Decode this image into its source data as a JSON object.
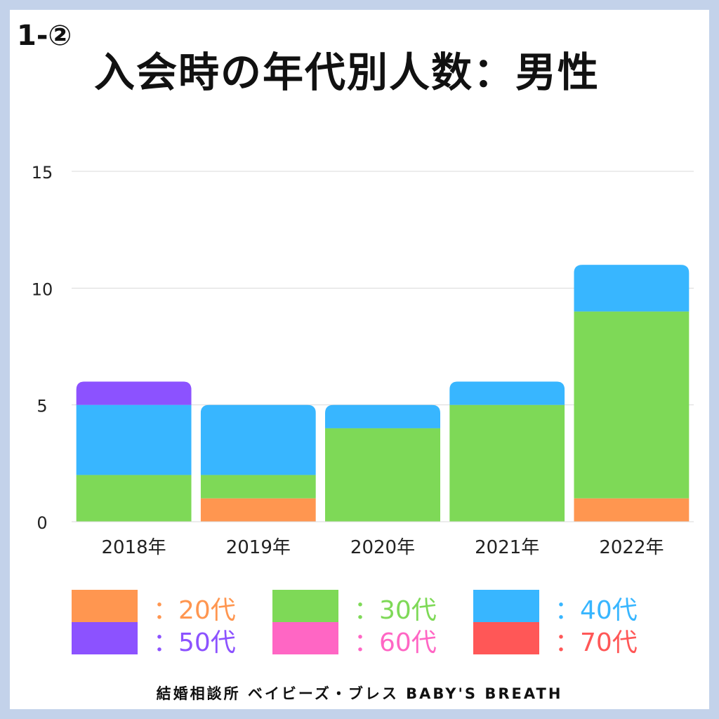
{
  "header": {
    "section_no": "1-②",
    "title": "入会時の年代別人数：男性"
  },
  "footer": {
    "text": "結婚相談所 ベイビーズ・ブレス BABY'S BREATH"
  },
  "chart_data": {
    "type": "bar",
    "stacked": true,
    "title": "入会時の年代別人数：男性",
    "xlabel": "",
    "ylabel": "",
    "ylim": [
      0,
      15
    ],
    "yticks": [
      0,
      5,
      10,
      15
    ],
    "grid": true,
    "legend_position": "bottom",
    "categories": [
      "2018年",
      "2019年",
      "2020年",
      "2021年",
      "2022年"
    ],
    "series": [
      {
        "name": "：20代",
        "color": "#ff9650",
        "values": [
          0,
          1,
          0,
          0,
          1
        ]
      },
      {
        "name": "：30代",
        "color": "#7ed957",
        "values": [
          2,
          1,
          4,
          5,
          8
        ]
      },
      {
        "name": "：40代",
        "color": "#38b6ff",
        "values": [
          3,
          3,
          1,
          1,
          2
        ]
      },
      {
        "name": "：50代",
        "color": "#8c52ff",
        "values": [
          1,
          0,
          0,
          0,
          0
        ]
      },
      {
        "name": "：60代",
        "color": "#ff66c4",
        "values": [
          0,
          0,
          0,
          0,
          0
        ]
      },
      {
        "name": "：70代",
        "color": "#ff5757",
        "values": [
          0,
          0,
          0,
          0,
          0
        ]
      }
    ]
  }
}
